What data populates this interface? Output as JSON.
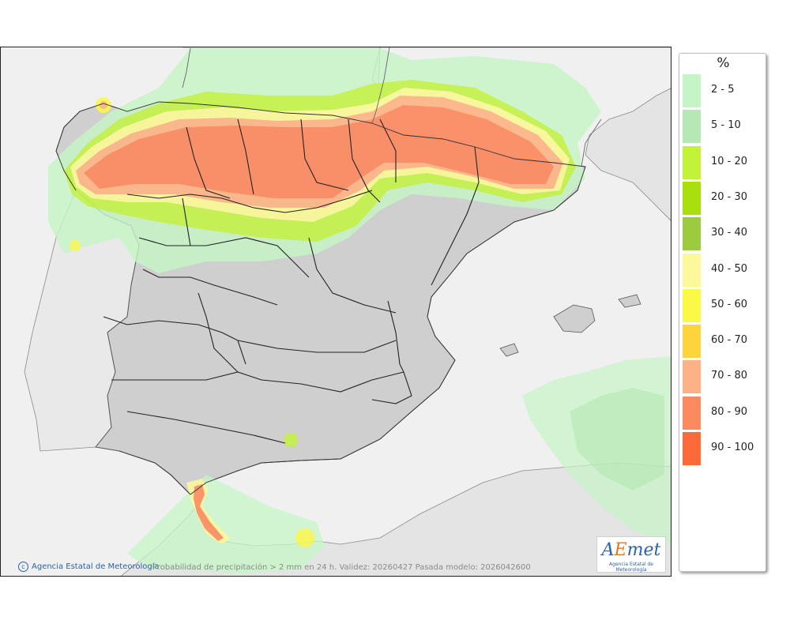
{
  "legend": {
    "title": "%",
    "classes": [
      {
        "label": "2 - 5",
        "color": "#c5f5c6"
      },
      {
        "label": "5 - 10",
        "color": "#b6e8b6"
      },
      {
        "label": "10 - 20",
        "color": "#c3f23a"
      },
      {
        "label": "20 - 30",
        "color": "#a8df0c"
      },
      {
        "label": "30 - 40",
        "color": "#9ccb3e"
      },
      {
        "label": "40 - 50",
        "color": "#fcf89c"
      },
      {
        "label": "50 - 60",
        "color": "#fcf846"
      },
      {
        "label": "60 - 70",
        "color": "#fdd43c"
      },
      {
        "label": "70 - 80",
        "color": "#fcb286"
      },
      {
        "label": "80 - 90",
        "color": "#fb8a60"
      },
      {
        "label": "90 - 100",
        "color": "#fb6a3a"
      }
    ]
  },
  "map": {
    "credit": "Agencia Estatal de Meteorología",
    "caption": "Probabilidad de precipitación > 2 mm en 24 h. Validez: 20260427 Pasada modelo: 2026042600",
    "land_color": "#cfcfcf",
    "sea_color": "#f0f0f0"
  },
  "logo": {
    "letter_a": "A",
    "letter_e": "E",
    "rest": "met",
    "subtitle": "Agencia Estatal de Meteorología"
  }
}
